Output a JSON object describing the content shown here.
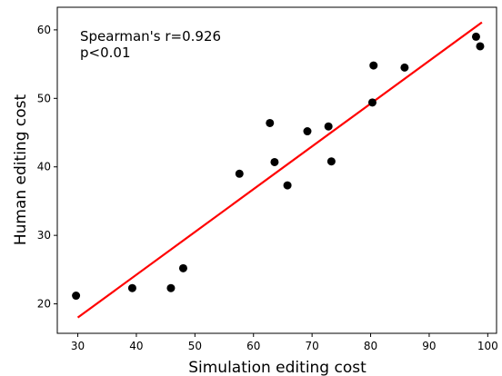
{
  "chart_data": {
    "type": "scatter",
    "xlabel": "Simulation editing cost",
    "ylabel": "Human editing cost",
    "xlim": [
      26.5,
      101.5
    ],
    "ylim": [
      15.7,
      63.3
    ],
    "x_ticks": [
      30,
      40,
      50,
      60,
      70,
      80,
      90,
      100
    ],
    "y_ticks": [
      20,
      30,
      40,
      50,
      60
    ],
    "grid": false,
    "annotations": [
      "Spearman's r=0.926",
      "p<0.01"
    ],
    "points": [
      {
        "x": 29.7,
        "y": 21.2
      },
      {
        "x": 39.3,
        "y": 22.3
      },
      {
        "x": 45.9,
        "y": 22.3
      },
      {
        "x": 48.0,
        "y": 25.2
      },
      {
        "x": 57.6,
        "y": 39.0
      },
      {
        "x": 62.8,
        "y": 46.4
      },
      {
        "x": 63.6,
        "y": 40.7
      },
      {
        "x": 65.8,
        "y": 37.3
      },
      {
        "x": 69.2,
        "y": 45.2
      },
      {
        "x": 72.8,
        "y": 45.9
      },
      {
        "x": 73.3,
        "y": 40.8
      },
      {
        "x": 80.3,
        "y": 49.4
      },
      {
        "x": 80.5,
        "y": 54.8
      },
      {
        "x": 85.8,
        "y": 54.5
      },
      {
        "x": 98.0,
        "y": 59.0
      },
      {
        "x": 98.7,
        "y": 57.6
      }
    ],
    "fit_line": {
      "x": [
        30,
        99
      ],
      "y": [
        18.0,
        61.1
      ],
      "color": "#ff0000"
    },
    "point_color": "#000000"
  }
}
